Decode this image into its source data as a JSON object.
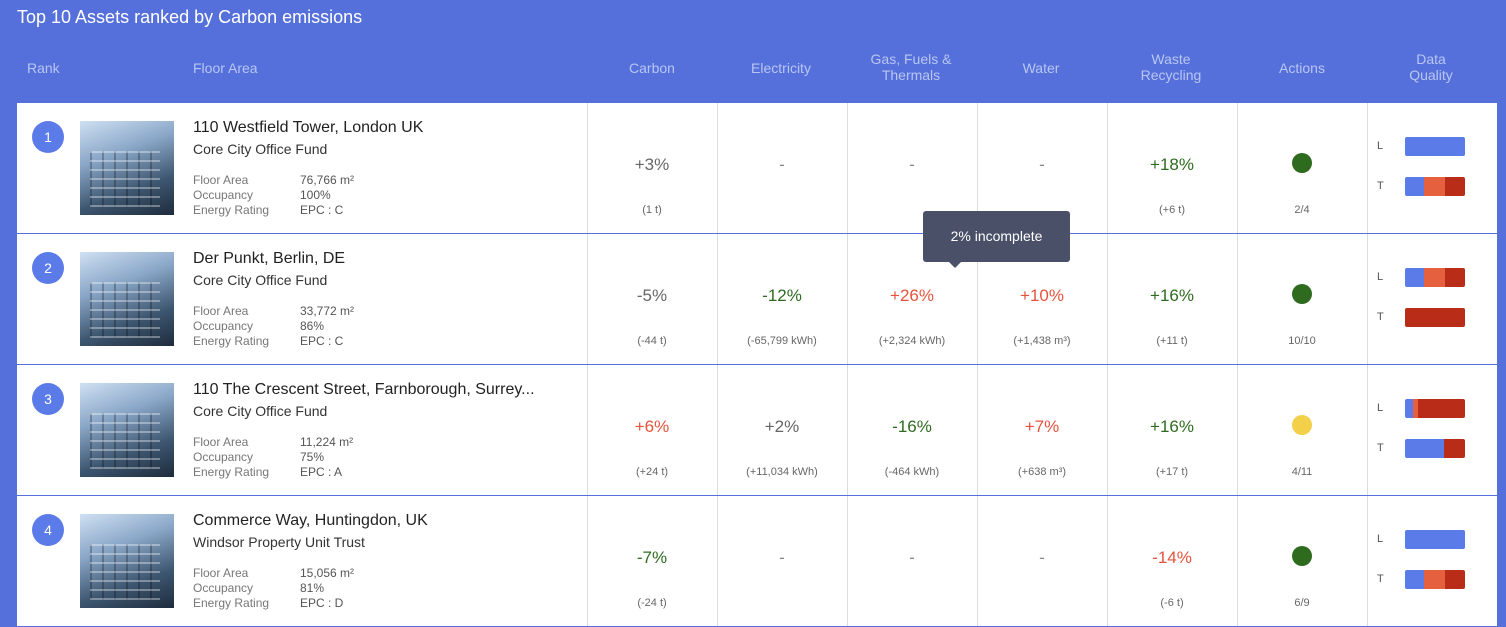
{
  "title": "Top 10 Assets ranked by Carbon emissions",
  "columns": [
    [
      "Rank"
    ],
    [
      "Floor Area"
    ],
    [
      "Carbon"
    ],
    [
      "Electricity"
    ],
    [
      "Gas, Fuels &",
      "Thermals"
    ],
    [
      "Water"
    ],
    [
      "Waste",
      "Recycling"
    ],
    [
      "Actions"
    ],
    [
      "Data",
      "Quality"
    ]
  ],
  "tooltip": "2% incomplete",
  "rows": [
    {
      "rank": 1,
      "name": "110 Westfield Tower, London UK",
      "fund": "Core City Office Fund",
      "details": [
        {
          "label": "Floor Area",
          "value": "76,766 m²"
        },
        {
          "label": "Occupancy",
          "value": "100%"
        },
        {
          "label": "Energy Rating",
          "value": "EPC : C"
        }
      ],
      "metrics": [
        {
          "value": "+3%",
          "note": "(1 t)",
          "color": "#666666"
        },
        {
          "value": "-",
          "color": "#888888"
        },
        {
          "value": "-",
          "color": "#888888"
        },
        {
          "value": "-",
          "color": "#888888"
        },
        {
          "value": "+18%",
          "note": "(+6 t)",
          "color": "#2e6b1f"
        }
      ],
      "action": {
        "color": "#2e6b1f",
        "value": "2/4"
      },
      "quality": [
        {
          "label": "L",
          "segments": [
            {
              "value": 100,
              "color": "#5b7be8"
            }
          ]
        },
        {
          "label": "T",
          "segments": [
            {
              "value": 32,
              "color": "#5b7be8"
            },
            {
              "value": 35,
              "color": "#e5603f"
            },
            {
              "value": 33,
              "color": "#b92d18"
            }
          ]
        }
      ]
    },
    {
      "rank": 2,
      "name": "Der Punkt, Berlin, DE",
      "fund": "Core City Office Fund",
      "details": [
        {
          "label": "Floor Area",
          "value": "33,772 m²"
        },
        {
          "label": "Occupancy",
          "value": "86%"
        },
        {
          "label": "Energy Rating",
          "value": "EPC : C"
        }
      ],
      "metrics": [
        {
          "value": "-5%",
          "note": "(-44 t)",
          "color": "#666666"
        },
        {
          "value": "-12%",
          "note": "(-65,799 kWh)",
          "color": "#2e6b1f"
        },
        {
          "value": "+26%",
          "note": "(+2,324 kWh)",
          "color": "#e5533d"
        },
        {
          "value": "+10%",
          "note": "(+1,438 m³)",
          "color": "#e5533d"
        },
        {
          "value": "+16%",
          "note": "(+11 t)",
          "color": "#2e6b1f"
        }
      ],
      "action": {
        "color": "#2e6b1f",
        "value": "10/10"
      },
      "quality": [
        {
          "label": "L",
          "segments": [
            {
              "value": 32,
              "color": "#5b7be8"
            },
            {
              "value": 35,
              "color": "#e5603f"
            },
            {
              "value": 33,
              "color": "#b92d18"
            }
          ]
        },
        {
          "label": "T",
          "segments": [
            {
              "value": 100,
              "color": "#b92d18"
            }
          ]
        }
      ]
    },
    {
      "rank": 3,
      "name": "110 The Crescent Street, Farnborough, Surrey...",
      "fund": "Core City Office Fund",
      "details": [
        {
          "label": "Floor Area",
          "value": "11,224 m²"
        },
        {
          "label": "Occupancy",
          "value": "75%"
        },
        {
          "label": "Energy Rating",
          "value": "EPC : A"
        }
      ],
      "metrics": [
        {
          "value": "+6%",
          "note": "(+24 t)",
          "color": "#e5533d"
        },
        {
          "value": "+2%",
          "note": "(+11,034 kWh)",
          "color": "#666666"
        },
        {
          "value": "-16%",
          "note": "(-464 kWh)",
          "color": "#2e6b1f"
        },
        {
          "value": "+7%",
          "note": "(+638 m³)",
          "color": "#e5533d"
        },
        {
          "value": "+16%",
          "note": "(+17 t)",
          "color": "#2e6b1f"
        }
      ],
      "action": {
        "color": "#f2d04a",
        "value": "4/11"
      },
      "quality": [
        {
          "label": "L",
          "segments": [
            {
              "value": 13,
              "color": "#5b7be8"
            },
            {
              "value": 8,
              "color": "#e5603f"
            },
            {
              "value": 79,
              "color": "#b92d18"
            }
          ]
        },
        {
          "label": "T",
          "segments": [
            {
              "value": 65,
              "color": "#5b7be8"
            },
            {
              "value": 35,
              "color": "#b92d18"
            }
          ]
        }
      ]
    },
    {
      "rank": 4,
      "name": "Commerce Way, Huntingdon, UK",
      "fund": "Windsor Property Unit Trust",
      "details": [
        {
          "label": "Floor Area",
          "value": "15,056 m²"
        },
        {
          "label": "Occupancy",
          "value": "81%"
        },
        {
          "label": "Energy Rating",
          "value": "EPC : D"
        }
      ],
      "metrics": [
        {
          "value": "-7%",
          "note": "(-24 t)",
          "color": "#2e6b1f"
        },
        {
          "value": "-",
          "color": "#888888"
        },
        {
          "value": "-",
          "color": "#888888"
        },
        {
          "value": "-",
          "color": "#888888"
        },
        {
          "value": "-14%",
          "note": "(-6 t)",
          "color": "#e5533d"
        }
      ],
      "action": {
        "color": "#2e6b1f",
        "value": "6/9"
      },
      "quality": [
        {
          "label": "L",
          "segments": [
            {
              "value": 100,
              "color": "#5b7be8"
            }
          ]
        },
        {
          "label": "T",
          "segments": [
            {
              "value": 32,
              "color": "#5b7be8"
            },
            {
              "value": 35,
              "color": "#e5603f"
            },
            {
              "value": 33,
              "color": "#b92d18"
            }
          ]
        }
      ]
    }
  ]
}
